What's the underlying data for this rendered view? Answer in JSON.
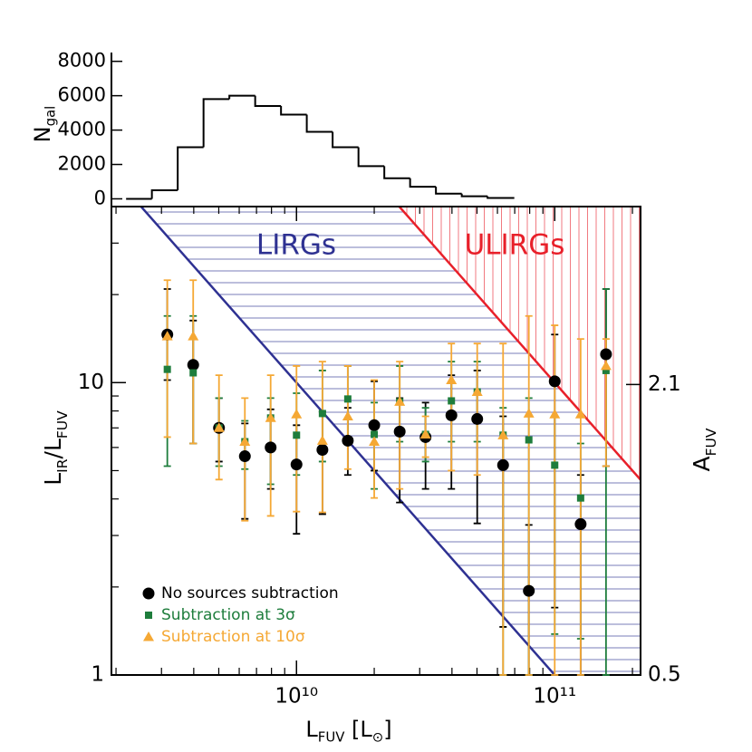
{
  "chart_data": [
    {
      "type": "histogram",
      "ylabel": [
        {
          "text": "N"
        },
        {
          "text": "gal",
          "sub": true
        }
      ],
      "bins": [
        2188000000.0,
        2754000000.0,
        3467000000.0,
        4365000000.0,
        5495000000.0,
        6918000000.0,
        8710000000.0,
        10960000000.0,
        13800000000.0,
        17380000000.0,
        21880000000.0,
        27540000000.0,
        34670000000.0,
        43650000000.0,
        54950000000.0,
        69180000000.0
      ],
      "counts": [
        0,
        500,
        3000,
        5800,
        6000,
        5400,
        4900,
        3900,
        3000,
        1900,
        1200,
        700,
        300,
        150,
        50
      ],
      "color": "#000000",
      "xscale": "log",
      "xlim": [
        1920000000.0,
        215000000000.0
      ],
      "ylim": [
        -450,
        8300
      ],
      "yticks": [
        0,
        2000,
        4000,
        6000,
        8000
      ]
    },
    {
      "type": "scatter",
      "xlabel": [
        {
          "text": "L"
        },
        {
          "text": "FUV",
          "sub": true
        },
        {
          "text": " [L"
        },
        {
          "text": "⊙",
          "sub": true
        },
        {
          "text": "]"
        }
      ],
      "ylabel": [
        {
          "text": "L"
        },
        {
          "text": "IR",
          "sub": true
        },
        {
          "text": "/L"
        },
        {
          "text": "FUV",
          "sub": true
        }
      ],
      "y2label": [
        {
          "text": "A"
        },
        {
          "text": "FUV",
          "sub": true
        }
      ],
      "xscale": "log",
      "yscale": "log",
      "xlim": [
        1920000000.0,
        215000000000.0
      ],
      "ylim": [
        1,
        40
      ],
      "xticks": [
        {
          "value": 10000000000.0,
          "label": "10¹⁰"
        },
        {
          "value": 100000000000.0,
          "label": "10¹¹"
        }
      ],
      "xminorticks": [
        2000000000.0,
        3000000000.0,
        4000000000.0,
        5000000000.0,
        6000000000.0,
        7000000000.0,
        8000000000.0,
        9000000000.0,
        20000000000.0,
        30000000000.0,
        40000000000.0,
        50000000000.0,
        60000000000.0,
        70000000000.0,
        80000000000.0,
        90000000000.0,
        200000000000.0
      ],
      "yticks": [
        1,
        10
      ],
      "yminorticks": [
        2,
        3,
        4,
        5,
        6,
        7,
        8,
        9,
        20,
        30,
        40
      ],
      "y2lim": [
        0.5,
        3.08
      ],
      "y2ticks": [
        2.1,
        0.5
      ],
      "x": [
        3160000000.0,
        3980000000.0,
        5010000000.0,
        6310000000.0,
        7940000000.0,
        10000000000.0,
        12600000000.0,
        15800000000.0,
        20000000000.0,
        25100000000.0,
        31600000000.0,
        39800000000.0,
        50100000000.0,
        63100000000.0,
        79400000000.0,
        100000000000.0,
        126000000000.0,
        158000000000.0
      ],
      "series": [
        {
          "name": "No sources subtraction",
          "color": "#000000",
          "marker": "circle",
          "values": [
            14.6,
            11.5,
            7.0,
            5.6,
            6.0,
            5.25,
            5.89,
            6.33,
            7.15,
            6.8,
            6.51,
            7.73,
            7.51,
            5.22,
            1.94,
            10.1,
            3.28,
            12.5
          ],
          "lower": [
            10.2,
            6.19,
            5.37,
            3.42,
            4.33,
            3.04,
            3.55,
            4.83,
            5.0,
            3.89,
            4.33,
            4.33,
            3.3,
            1.46,
            1.0,
            1.7,
            1.0,
            5.18
          ],
          "upper": [
            20.9,
            16.3,
            8.85,
            7.25,
            8.1,
            7.15,
            7.95,
            8.2,
            10.1,
            8.85,
            8.54,
            10.6,
            11.0,
            7.67,
            3.26,
            14.6,
            4.83,
            20.9
          ]
        },
        {
          "name": "Subtraction at 3σ",
          "color": "#1e7d3c",
          "marker": "square",
          "values": [
            11.1,
            10.8,
            7.0,
            6.28,
            7.57,
            6.61,
            7.84,
            8.79,
            6.65,
            8.6,
            6.65,
            8.66,
            9.3,
            6.61,
            6.37,
            5.22,
            4.03,
            11.0
          ],
          "lower": [
            5.18,
            6.19,
            5.18,
            5.06,
            4.49,
            4.83,
            5.37,
            6.19,
            4.33,
            6.28,
            5.37,
            6.28,
            6.28,
            1.0,
            1.0,
            1.38,
            1.33,
            1.0
          ],
          "upper": [
            16.9,
            16.9,
            8.85,
            7.4,
            8.85,
            9.2,
            11.0,
            11.4,
            8.54,
            11.4,
            8.2,
            11.8,
            11.8,
            8.2,
            8.85,
            7.67,
            6.19,
            20.9
          ]
        },
        {
          "name": "Subtraction at 10σ",
          "color": "#f5a834",
          "marker": "triangle",
          "values": [
            14.4,
            14.4,
            7.0,
            6.28,
            7.57,
            7.79,
            6.33,
            7.67,
            6.28,
            8.6,
            6.65,
            10.2,
            9.3,
            6.61,
            7.84,
            7.79,
            7.79,
            11.4
          ],
          "lower": [
            6.51,
            6.19,
            4.66,
            3.37,
            3.5,
            3.62,
            3.6,
            5.06,
            4.03,
            4.33,
            5.56,
            5.0,
            4.83,
            1.0,
            1.0,
            1.0,
            1.0,
            5.18
          ],
          "upper": [
            22.4,
            22.4,
            10.6,
            8.85,
            10.6,
            11.4,
            11.8,
            11.4,
            10.2,
            11.8,
            7.67,
            13.6,
            13.6,
            13.6,
            16.9,
            15.7,
            14.1,
            14.1
          ]
        }
      ],
      "regions": [
        {
          "label": "LIRGs",
          "color": "#2e3192",
          "lir": 100000000000.0,
          "hatch": "horizontal"
        },
        {
          "label": "ULIRGs",
          "color": "#e8202a",
          "lir": 1000000000000.0,
          "hatch": "vertical"
        }
      ],
      "legend": "lower left"
    }
  ]
}
